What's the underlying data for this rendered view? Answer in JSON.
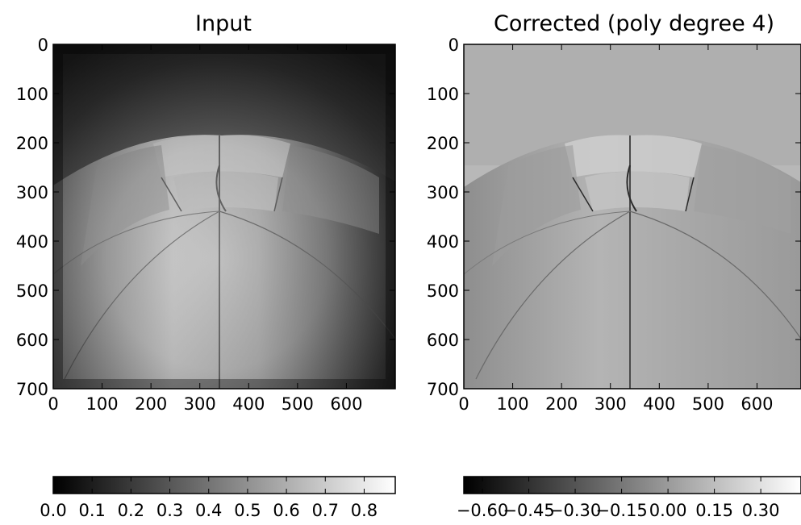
{
  "chart_data": [
    {
      "type": "image",
      "title": "Input",
      "x_ticks": [
        0,
        100,
        200,
        300,
        400,
        500,
        600
      ],
      "y_ticks": [
        0,
        100,
        200,
        300,
        400,
        500,
        600,
        700
      ],
      "xlim": [
        0,
        700
      ],
      "ylim": [
        700,
        0
      ],
      "colormap": "gray",
      "colorbar": {
        "orientation": "horizontal",
        "range": [
          0.0,
          0.88
        ],
        "ticks": [
          0.0,
          0.1,
          0.2,
          0.3,
          0.4,
          0.5,
          0.6,
          0.7,
          0.8
        ],
        "tick_labels": [
          "0.0",
          "0.1",
          "0.2",
          "0.3",
          "0.4",
          "0.5",
          "0.6",
          "0.7",
          "0.8"
        ]
      }
    },
    {
      "type": "image",
      "title": "Corrected (poly degree 4)",
      "x_ticks": [
        0,
        100,
        200,
        300,
        400,
        500,
        600
      ],
      "y_ticks": [
        0,
        100,
        200,
        300,
        400,
        500,
        600,
        700
      ],
      "xlim": [
        0,
        690
      ],
      "ylim": [
        700,
        0
      ],
      "colormap": "gray",
      "colorbar": {
        "orientation": "horizontal",
        "range": [
          -0.66,
          0.43
        ],
        "ticks": [
          -0.6,
          -0.45,
          -0.3,
          -0.15,
          0.0,
          0.15,
          0.3
        ],
        "tick_labels": [
          "−0.60",
          "−0.45",
          "−0.30",
          "−0.15",
          "0.00",
          "0.15",
          "0.30"
        ]
      }
    }
  ]
}
